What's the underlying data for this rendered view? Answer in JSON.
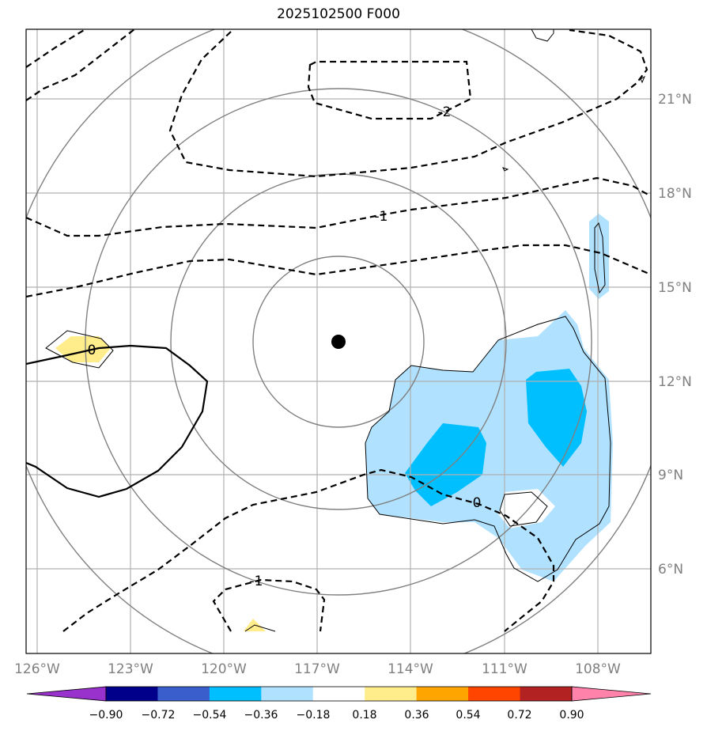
{
  "title": "2025102500 F000",
  "lon_labels": [
    "126°W",
    "123°W",
    "120°W",
    "117°W",
    "114°W",
    "111°W",
    "108°W"
  ],
  "lat_labels": [
    "21°N",
    "18°N",
    "15°N",
    "12°N",
    "9°N",
    "6°N"
  ],
  "contour_labels": [
    "-2",
    "-1",
    "-1",
    "0",
    "0"
  ],
  "colorbar": {
    "ticks": [
      "−0.90",
      "−0.72",
      "−0.54",
      "−0.36",
      "−0.18",
      "0.18",
      "0.36",
      "0.54",
      "0.72",
      "0.90"
    ],
    "colors": [
      "#9932cc",
      "#00008b",
      "#3a5fcd",
      "#00bfff",
      "#b0e2ff",
      "#ffffff",
      "#ffec8b",
      "#ffa500",
      "#ff4500",
      "#b22222",
      "#ff82ab"
    ]
  },
  "colors": {
    "graticule": "#b0b0b0",
    "range_rings": "#808080",
    "contour": "#000000",
    "center_marker": "#000000"
  },
  "center_marker": "storm-center"
}
